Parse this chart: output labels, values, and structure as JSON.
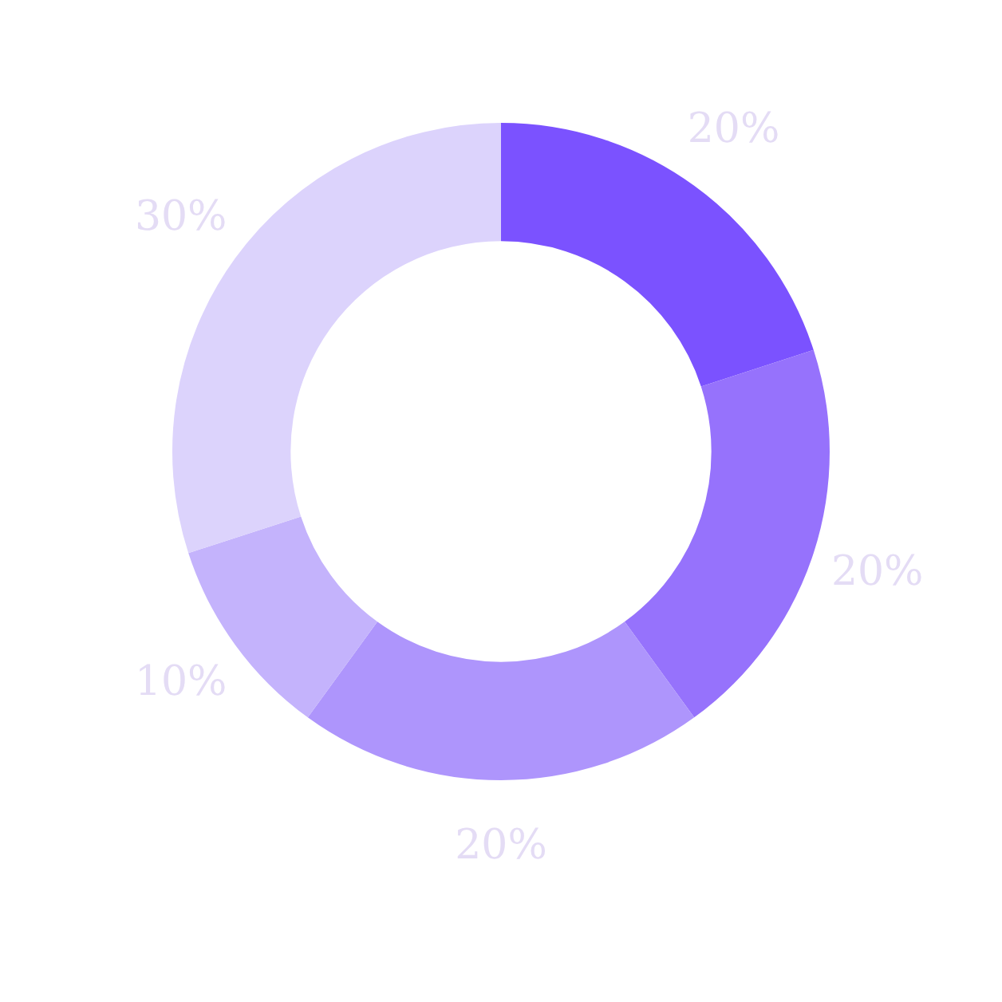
{
  "chart_data": {
    "type": "donut",
    "categories": [
      null,
      null,
      null,
      null,
      null
    ],
    "values": [
      20,
      20,
      20,
      10,
      30
    ],
    "colors": [
      "#7b52ff",
      "#9672fc",
      "#ae95fc",
      "#c4b3fc",
      "#dcd3fc"
    ],
    "value_labels": [
      "20%",
      "20%",
      "20%",
      "10%",
      "30%"
    ],
    "legend": false
  }
}
